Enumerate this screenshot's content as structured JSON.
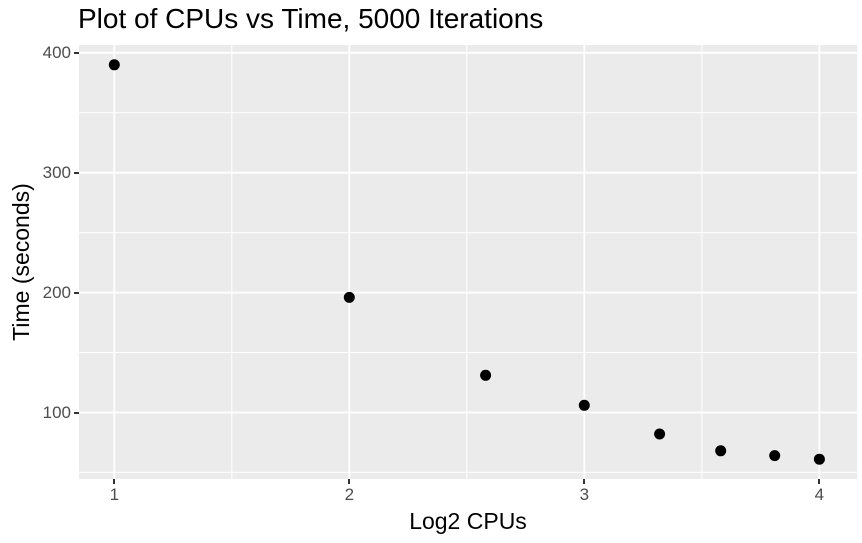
{
  "chart": {
    "title": "Plot of CPUs vs Time, 5000 Iterations",
    "xlabel": "Log2 CPUs",
    "ylabel": "Time (seconds)"
  },
  "chart_data": {
    "type": "scatter",
    "title": "Plot of CPUs vs Time, 5000 Iterations",
    "xlabel": "Log2 CPUs",
    "ylabel": "Time (seconds)",
    "points": [
      {
        "x": 1.0,
        "y": 390
      },
      {
        "x": 2.0,
        "y": 196
      },
      {
        "x": 2.58,
        "y": 131
      },
      {
        "x": 3.0,
        "y": 106
      },
      {
        "x": 3.32,
        "y": 82
      },
      {
        "x": 3.58,
        "y": 68
      },
      {
        "x": 3.81,
        "y": 64
      },
      {
        "x": 4.0,
        "y": 61
      }
    ],
    "xticks": [
      1,
      2,
      3,
      4
    ],
    "yticks": [
      100,
      200,
      300,
      400
    ],
    "xminor": [
      1.5,
      2.5,
      3.5
    ],
    "yminor": [
      50,
      150,
      250,
      350
    ],
    "xlim": [
      0.85,
      4.16
    ],
    "ylim": [
      44.5,
      406.5
    ],
    "grid": "major+minor",
    "legend": "none",
    "point_radius_px": 5.5,
    "style": {
      "panel_bg": "#EBEBEB",
      "grid_color": "#FFFFFF",
      "point_color": "#000000",
      "tick_label_color": "#4D4D4D",
      "axis_title_color": "#000000",
      "tick_mark_color": "#333333",
      "background": "#FFFFFF"
    }
  }
}
